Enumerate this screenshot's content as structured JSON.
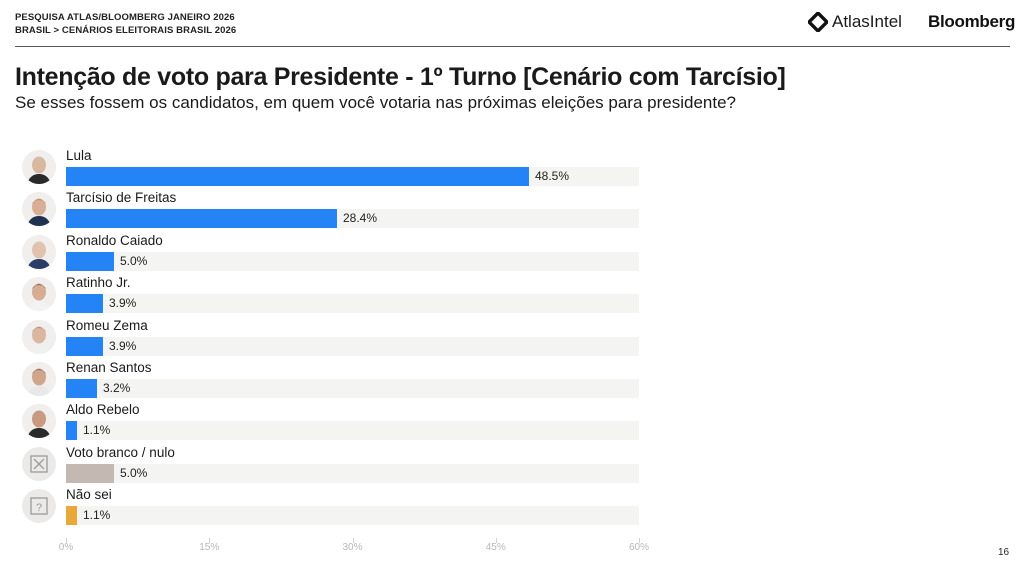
{
  "header": {
    "line1": "PESQUISA ATLAS/BLOOMBERG JANEIRO 2026",
    "line2": "BRASIL > CENÁRIOS ELEITORAIS BRASIL 2026",
    "logo_atlas": "AtlasIntel",
    "logo_bloomberg": "Bloomberg"
  },
  "title": "Intenção de voto para Presidente - 1º Turno [Cenário com Tarcísio]",
  "subtitle": "Se esses fossem os candidatos, em quem você votaria nas próximas eleições para presidente?",
  "page_number": "16",
  "colors": {
    "candidate": "#2484f5",
    "blank_null": "#c4b8b2",
    "dont_know": "#e8a93a",
    "track": "#f4f4f2"
  },
  "rows": [
    {
      "label": "Lula",
      "value": 48.5,
      "display": "48.5%",
      "type": "candidate",
      "icon": "photo-lula"
    },
    {
      "label": "Tarcísio de Freitas",
      "value": 28.4,
      "display": "28.4%",
      "type": "candidate",
      "icon": "photo-tarcisio"
    },
    {
      "label": "Ronaldo Caiado",
      "value": 5.0,
      "display": "5.0%",
      "type": "candidate",
      "icon": "photo-caiado"
    },
    {
      "label": "Ratinho Jr.",
      "value": 3.9,
      "display": "3.9%",
      "type": "candidate",
      "icon": "photo-ratinho"
    },
    {
      "label": "Romeu Zema",
      "value": 3.9,
      "display": "3.9%",
      "type": "candidate",
      "icon": "photo-zema"
    },
    {
      "label": "Renan Santos",
      "value": 3.2,
      "display": "3.2%",
      "type": "candidate",
      "icon": "photo-renan"
    },
    {
      "label": "Aldo Rebelo",
      "value": 1.1,
      "display": "1.1%",
      "type": "candidate",
      "icon": "photo-aldo"
    },
    {
      "label": "Voto branco / nulo",
      "value": 5.0,
      "display": "5.0%",
      "type": "blank_null",
      "icon": "x-box-icon"
    },
    {
      "label": "Não sei",
      "value": 1.1,
      "display": "1.1%",
      "type": "dont_know",
      "icon": "question-box-icon"
    }
  ],
  "axis": {
    "ticks": [
      "0%",
      "15%",
      "30%",
      "45%",
      "60%"
    ]
  },
  "chart_data": {
    "type": "bar",
    "orientation": "horizontal",
    "title": "Intenção de voto para Presidente - 1º Turno [Cenário com Tarcísio]",
    "subtitle": "Se esses fossem os candidatos, em quem você votaria nas próximas eleições para presidente?",
    "categories": [
      "Lula",
      "Tarcísio de Freitas",
      "Ronaldo Caiado",
      "Ratinho Jr.",
      "Romeu Zema",
      "Renan Santos",
      "Aldo Rebelo",
      "Voto branco / nulo",
      "Não sei"
    ],
    "values": [
      48.5,
      28.4,
      5.0,
      3.9,
      3.9,
      3.2,
      1.1,
      5.0,
      1.1
    ],
    "xlabel": "",
    "ylabel": "",
    "xlim": [
      0,
      60
    ],
    "xticks": [
      "0%",
      "15%",
      "30%",
      "45%",
      "60%"
    ],
    "grid": false,
    "legend": "none",
    "data_labels": true,
    "unit": "%"
  }
}
